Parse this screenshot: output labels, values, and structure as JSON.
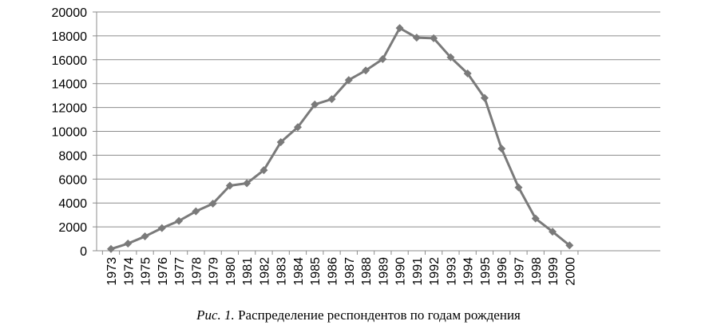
{
  "chart_data": {
    "type": "line",
    "title": "",
    "xlabel": "",
    "ylabel": "",
    "x": [
      "1973",
      "1974",
      "1975",
      "1976",
      "1977",
      "1978",
      "1979",
      "1980",
      "1981",
      "1982",
      "1983",
      "1984",
      "1985",
      "1986",
      "1987",
      "1988",
      "1989",
      "1990",
      "1991",
      "1992",
      "1993",
      "1994",
      "1995",
      "1996",
      "1997",
      "1998",
      "1999",
      "2000"
    ],
    "series": [
      {
        "values": [
          150,
          600,
          1200,
          1900,
          2500,
          3300,
          3950,
          5450,
          5650,
          6750,
          9100,
          10350,
          12250,
          12700,
          14300,
          15100,
          16050,
          18650,
          17850,
          17800,
          16200,
          14850,
          12800,
          8550,
          5300,
          2700,
          1600,
          450
        ]
      }
    ],
    "ylim": [
      0,
      20000
    ],
    "yticks": [
      0,
      2000,
      4000,
      6000,
      8000,
      10000,
      12000,
      14000,
      16000,
      18000,
      20000
    ],
    "grid": true,
    "legend": "none",
    "colors": {
      "line": "#7a7a7a",
      "marker": "#7a7a7a",
      "grid": "#8c8c8c",
      "axis": "#8c8c8c"
    }
  },
  "caption": {
    "figure_label": "Рис. 1.",
    "text": " Распределение респондентов по годам рождения"
  }
}
